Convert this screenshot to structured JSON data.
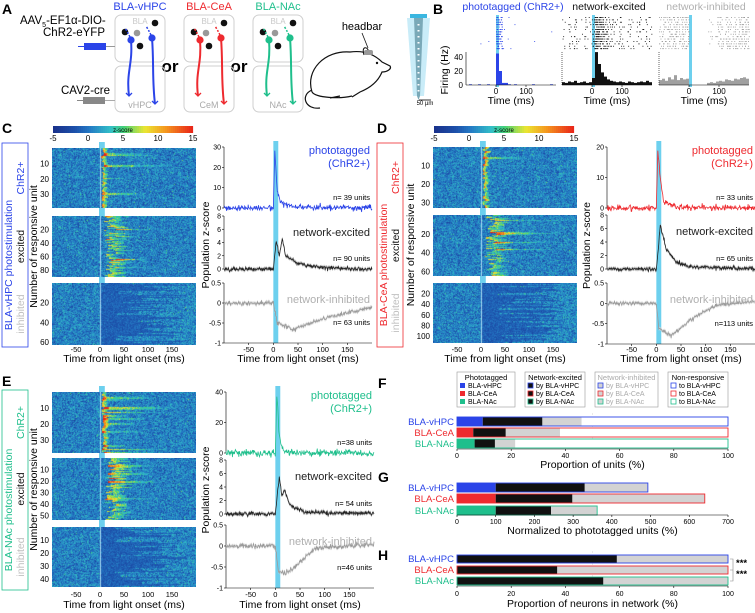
{
  "panel_letters": {
    "a": "A",
    "b": "B",
    "c": "C",
    "d": "D",
    "e": "E",
    "f": "F",
    "g": "G",
    "h": "H"
  },
  "colors": {
    "vhpc": "#2b44e8",
    "cea": "#ee2a2f",
    "nac": "#1fbf8c",
    "light": "#6dd0ee",
    "inhibited_gray": "#b4b4b4"
  },
  "panel_a": {
    "virus_pre": "AAV",
    "virus_sub": "5",
    "virus_post": "-EF1α-DIO-",
    "virus_line2": "ChR2-eYFP",
    "retro": "CAV2-cre",
    "or": "or",
    "bla": "BLA",
    "headbar": "headbar",
    "scale": "50 µm",
    "groups": [
      {
        "title": "BLA-vHPC",
        "target": "vHPC"
      },
      {
        "title": "BLA-CeA",
        "target": "CeM"
      },
      {
        "title": "BLA-NAc",
        "target": "NAc"
      }
    ]
  },
  "chart_data": [
    {
      "panel": "B",
      "type": "histogram",
      "xlabel": "Time (ms)",
      "ylabel": "Firing (Hz)",
      "xlim": [
        -100,
        200
      ],
      "ylim": [
        0,
        50
      ],
      "xticks": [
        0,
        100
      ],
      "yticks": [
        0,
        20,
        40
      ],
      "bin_ms": 10,
      "series": [
        {
          "name": "phototagged (ChR2+)",
          "color": "#2b44e8",
          "values": [
            0,
            1,
            0,
            0,
            1,
            0,
            0,
            1,
            0,
            0,
            45,
            20,
            3,
            3,
            1,
            0,
            1,
            0,
            0,
            0,
            0,
            0,
            1,
            0,
            0,
            0,
            0,
            0,
            1,
            0
          ]
        },
        {
          "name": "network-excited",
          "color": "#111111",
          "values": [
            4,
            3,
            5,
            4,
            6,
            3,
            4,
            5,
            3,
            4,
            10,
            47,
            30,
            18,
            12,
            8,
            6,
            5,
            4,
            5,
            4,
            3,
            5,
            4,
            3,
            4,
            5,
            4,
            6,
            4
          ]
        },
        {
          "name": "network-inhibited",
          "color": "#a0a0a0",
          "values": [
            7,
            9,
            6,
            11,
            8,
            14,
            7,
            10,
            8,
            9,
            0,
            0,
            0,
            0,
            0,
            0,
            3,
            4,
            3,
            5,
            6,
            5,
            8,
            7,
            6,
            9,
            8,
            10,
            11,
            9
          ]
        }
      ]
    },
    {
      "panel": "C",
      "type": "heatmap",
      "side_title": "BLA-vHPC photostimulation",
      "color": "#2b44e8",
      "colorbar": {
        "label": "z-score",
        "ticks": [
          -5,
          0,
          5,
          10,
          15
        ],
        "range": [
          -5,
          15
        ]
      },
      "xlabel": "Time from light onset (ms)",
      "ylabel": "Number of responsive unit",
      "xlim": [
        -100,
        200
      ],
      "xticks": [
        -50,
        0,
        50,
        100,
        150
      ],
      "groups": [
        {
          "label": "ChR2+",
          "kind": "tagged",
          "n": 39,
          "yticks": [
            10,
            20,
            30
          ]
        },
        {
          "label": "excited",
          "kind": "excited",
          "n": 90,
          "yticks": [
            20,
            40,
            60,
            80
          ]
        },
        {
          "label": "inhibited",
          "kind": "inhibited",
          "n": 63,
          "yticks": [
            20,
            40,
            60
          ]
        }
      ]
    },
    {
      "panel": "C",
      "type": "line",
      "xlabel": "Time from light onset (ms)",
      "ylabel": "Population z-score",
      "xlim": [
        -100,
        200
      ],
      "xticks": [
        -50,
        0,
        50,
        100,
        150
      ],
      "series": [
        {
          "name": [
            "phototagged",
            "(ChR2+)"
          ],
          "color": "#2b44e8",
          "n_label": "n= 39 units",
          "ylim": [
            0,
            30
          ],
          "yticks": [
            0,
            10,
            20,
            30
          ],
          "noise": 0.15,
          "points": [
            [
              -100,
              0
            ],
            [
              0,
              0
            ],
            [
              3,
              28
            ],
            [
              8,
              8
            ],
            [
              15,
              3
            ],
            [
              30,
              1
            ],
            [
              60,
              0.3
            ],
            [
              200,
              0
            ]
          ]
        },
        {
          "name": [
            "network-excited"
          ],
          "color": "#222222",
          "n_label": "n= 90 units",
          "ylim": [
            0,
            8
          ],
          "yticks": [
            0,
            2,
            4,
            6,
            8
          ],
          "noise": 0.12,
          "points": [
            [
              -100,
              0
            ],
            [
              0,
              0
            ],
            [
              6,
              4.2
            ],
            [
              12,
              2
            ],
            [
              18,
              4.6
            ],
            [
              25,
              2
            ],
            [
              50,
              0.8
            ],
            [
              100,
              0.2
            ],
            [
              200,
              0
            ]
          ]
        },
        {
          "name": [
            "network-inhibited"
          ],
          "color": "#9a9a9a",
          "n_label": "n= 63 units",
          "ylim": [
            -1,
            0.5
          ],
          "yticks": [
            -1,
            -0.5,
            0,
            0.5
          ],
          "noise": 0.12,
          "points": [
            [
              -100,
              0
            ],
            [
              0,
              0
            ],
            [
              8,
              -0.5
            ],
            [
              40,
              -0.65
            ],
            [
              100,
              -0.4
            ],
            [
              200,
              -0.1
            ]
          ]
        }
      ]
    },
    {
      "panel": "D",
      "type": "heatmap",
      "side_title": "BLA-CeA photostimulation",
      "color": "#ee2a2f",
      "colorbar": {
        "label": "z-score",
        "ticks": [
          -5,
          0,
          5,
          10,
          15
        ],
        "range": [
          -5,
          15
        ]
      },
      "xlabel": "Time from light onset (ms)",
      "ylabel": "Number of responsive unit",
      "xlim": [
        -100,
        200
      ],
      "xticks": [
        -50,
        0,
        50,
        100,
        150
      ],
      "groups": [
        {
          "label": "ChR2+",
          "kind": "tagged",
          "n": 33,
          "yticks": [
            10,
            20,
            30
          ]
        },
        {
          "label": "excited",
          "kind": "excited",
          "n": 65,
          "yticks": [
            20,
            40,
            60
          ]
        },
        {
          "label": "inhibited",
          "kind": "inhibited",
          "n": 113,
          "yticks": [
            20,
            40,
            60,
            80,
            100
          ]
        }
      ]
    },
    {
      "panel": "D",
      "type": "line",
      "xlabel": "Time from light onset (ms)",
      "ylabel": "Population z-score",
      "xlim": [
        -100,
        200
      ],
      "xticks": [
        -50,
        0,
        50,
        100,
        150
      ],
      "series": [
        {
          "name": [
            "phototagged",
            "(ChR2+)"
          ],
          "color": "#ee2a2f",
          "n_label": "n= 33 units",
          "ylim": [
            0,
            20
          ],
          "yticks": [
            0,
            10,
            20
          ],
          "noise": 0.15,
          "points": [
            [
              -100,
              0
            ],
            [
              0,
              0
            ],
            [
              3,
              19
            ],
            [
              8,
              10
            ],
            [
              15,
              2
            ],
            [
              40,
              0.3
            ],
            [
              200,
              0
            ]
          ]
        },
        {
          "name": [
            "network-excited"
          ],
          "color": "#222222",
          "n_label": "n= 65 units",
          "ylim": [
            0,
            8
          ],
          "yticks": [
            0,
            2,
            4,
            6,
            8
          ],
          "noise": 0.12,
          "points": [
            [
              -100,
              0
            ],
            [
              0,
              0
            ],
            [
              8,
              6.5
            ],
            [
              20,
              3
            ],
            [
              40,
              1
            ],
            [
              70,
              0.3
            ],
            [
              200,
              0
            ]
          ]
        },
        {
          "name": [
            "network-inhibited"
          ],
          "color": "#9a9a9a",
          "n_label": "n=113 units",
          "ylim": [
            -1,
            0.5
          ],
          "yticks": [
            -1,
            -0.5,
            0,
            0.5
          ],
          "noise": 0.1,
          "points": [
            [
              -100,
              0
            ],
            [
              0,
              0
            ],
            [
              5,
              -0.6
            ],
            [
              30,
              -0.8
            ],
            [
              70,
              -0.4
            ],
            [
              120,
              -0.05
            ],
            [
              200,
              0.05
            ]
          ]
        }
      ]
    },
    {
      "panel": "E",
      "type": "heatmap",
      "side_title": "BLA-NAc photostimulation",
      "color": "#1fbf8c",
      "colorbar": {
        "label": "z-score",
        "ticks": [
          -5,
          0,
          5,
          10,
          15
        ],
        "range": [
          -5,
          15
        ]
      },
      "xlabel": "Time from light onset (ms)",
      "ylabel": "Number of responsive unit",
      "xlim": [
        -100,
        200
      ],
      "xticks": [
        -50,
        0,
        50,
        100,
        150
      ],
      "groups": [
        {
          "label": "ChR2+",
          "kind": "tagged",
          "n": 38,
          "yticks": [
            10,
            20,
            30
          ]
        },
        {
          "label": "excited",
          "kind": "excited",
          "n": 54,
          "yticks": [
            10,
            20,
            30,
            40,
            50
          ]
        },
        {
          "label": "inhibited",
          "kind": "inhibited",
          "n": 46,
          "yticks": [
            10,
            20,
            30,
            40
          ]
        }
      ]
    },
    {
      "panel": "E",
      "type": "line",
      "xlabel": "Time from light onset (ms)",
      "ylabel": "Population z-score",
      "xlim": [
        -100,
        200
      ],
      "xticks": [
        -50,
        0,
        50,
        100,
        150
      ],
      "series": [
        {
          "name": [
            "phototagged",
            "(ChR2+)"
          ],
          "color": "#1fbf8c",
          "n_label": "n=38 units",
          "ylim": [
            0,
            40
          ],
          "yticks": [
            0,
            20,
            40
          ],
          "noise": 0.2,
          "points": [
            [
              -100,
              0
            ],
            [
              0,
              0
            ],
            [
              3,
              38
            ],
            [
              8,
              12
            ],
            [
              15,
              2
            ],
            [
              40,
              0.3
            ],
            [
              200,
              0
            ]
          ]
        },
        {
          "name": [
            "network-excited"
          ],
          "color": "#222222",
          "n_label": "n= 54 units",
          "ylim": [
            0,
            8
          ],
          "yticks": [
            0,
            2,
            4,
            6,
            8
          ],
          "noise": 0.12,
          "points": [
            [
              -100,
              0
            ],
            [
              0,
              0
            ],
            [
              8,
              5.5
            ],
            [
              13,
              2.8
            ],
            [
              18,
              3.6
            ],
            [
              30,
              1.2
            ],
            [
              60,
              0.3
            ],
            [
              200,
              0
            ]
          ]
        },
        {
          "name": [
            "network-inhibited"
          ],
          "color": "#9a9a9a",
          "n_label": "n=46 units",
          "ylim": [
            -1,
            0.5
          ],
          "yticks": [
            -1,
            -0.5,
            0,
            0.5
          ],
          "noise": 0.14,
          "points": [
            [
              -100,
              0
            ],
            [
              0,
              0
            ],
            [
              6,
              -0.6
            ],
            [
              20,
              -0.65
            ],
            [
              40,
              -0.5
            ],
            [
              80,
              -0.05
            ],
            [
              200,
              0.05
            ]
          ]
        }
      ]
    },
    {
      "panel": "F",
      "type": "bar",
      "orientation": "horizontal",
      "stacked": true,
      "categories": [
        "BLA-vHPC",
        "BLA-CeA",
        "BLA-NAc"
      ],
      "xlabel": "Proportion of units (%)",
      "xlim": [
        0,
        100
      ],
      "xticks": [
        0,
        20,
        40,
        60,
        80,
        100
      ],
      "series": [
        {
          "name": "Phototagged",
          "style": "fill",
          "values": [
            9.5,
            6,
            6.5
          ]
        },
        {
          "name": "Network-excited",
          "style": "black",
          "values": [
            22,
            12,
            7.5
          ]
        },
        {
          "name": "Network-inhibited",
          "style": "gray",
          "values": [
            14.5,
            20,
            7.5
          ]
        },
        {
          "name": "Non-responsive",
          "style": "white",
          "values": [
            54,
            62,
            78.5
          ]
        }
      ],
      "legend_position": "top",
      "legend": [
        {
          "title": "Phototagged",
          "style": "fill",
          "items": [
            "BLA-vHPC",
            "BLA-CeA",
            "BLA-NAc"
          ]
        },
        {
          "title": "Network-excited",
          "style": "black",
          "items": [
            "by BLA-vHPC",
            "by BLA-CeA",
            "by BLA-NAc"
          ]
        },
        {
          "title": "Network-inhibited",
          "style": "gray",
          "items": [
            "by BLA-vHPC",
            "by BLA-CeA",
            "by BLA-NAc"
          ]
        },
        {
          "title": "Non-responsive",
          "style": "white",
          "items": [
            "to BLA-vHPC",
            "to BLA-CeA",
            "to BLA-NAc"
          ]
        }
      ]
    },
    {
      "panel": "G",
      "type": "bar",
      "orientation": "horizontal",
      "stacked": true,
      "categories": [
        "BLA-vHPC",
        "BLA-CeA",
        "BLA-NAc"
      ],
      "xlabel": "Normalized to phototagged units (%)",
      "xlim": [
        0,
        700
      ],
      "xticks": [
        0,
        100,
        200,
        300,
        400,
        500,
        600,
        700
      ],
      "series": [
        {
          "name": "Phototagged",
          "style": "fill",
          "values": [
            100,
            100,
            100
          ]
        },
        {
          "name": "Network-excited",
          "style": "black",
          "values": [
            230,
            198,
            143
          ]
        },
        {
          "name": "Network-inhibited",
          "style": "gray",
          "values": [
            163,
            342,
            119
          ]
        }
      ]
    },
    {
      "panel": "H",
      "type": "bar",
      "orientation": "horizontal",
      "stacked": true,
      "categories": [
        "BLA-vHPC",
        "BLA-CeA",
        "BLA-NAc"
      ],
      "xlabel": "Proportion of neurons in network (%)",
      "xlim": [
        0,
        100
      ],
      "xticks": [
        0,
        20,
        40,
        60,
        80,
        100
      ],
      "series": [
        {
          "name": "Network-excited",
          "style": "black",
          "values": [
            59,
            37,
            54
          ]
        },
        {
          "name": "Network-inhibited",
          "style": "gray",
          "values": [
            41,
            63,
            46
          ]
        }
      ],
      "significance": [
        "***",
        "***"
      ]
    }
  ]
}
